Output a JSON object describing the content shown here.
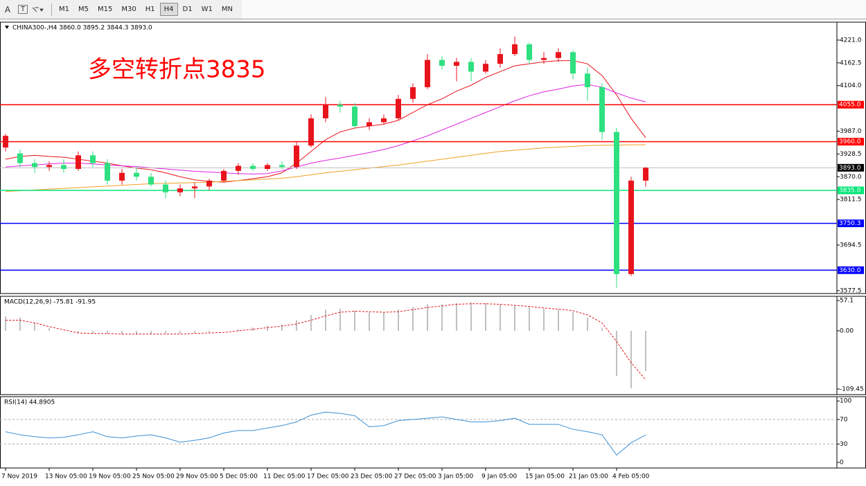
{
  "toolbar": {
    "text_tool": "A",
    "label_tool": "T",
    "periods": [
      "M1",
      "M5",
      "M15",
      "M30",
      "H1",
      "H4",
      "D1",
      "W1",
      "MN"
    ],
    "active": "H4"
  },
  "chart_data": [
    {
      "type": "candlestick",
      "title": "CHINA300-,H4 3860.0 3895.2 3844.3 3893.0",
      "annotation": "多空转折点3835",
      "categories": [
        "7 Nov 2019",
        null,
        null,
        "13 Nov 05:00",
        null,
        null,
        "19 Nov 05:00",
        null,
        null,
        "25 Nov 05:00",
        null,
        null,
        "29 Nov 05:00",
        null,
        null,
        "5 Dec 05:00",
        null,
        null,
        "11 Dec 05:00",
        null,
        null,
        "17 Dec 05:00",
        null,
        null,
        "23 Dec 05:00",
        null,
        null,
        "27 Dec 05:00",
        null,
        null,
        "3 Jan 05:00",
        null,
        null,
        "9 Jan 05:00",
        null,
        null,
        "15 Jan 05:00",
        null,
        null,
        "21 Jan 05:00",
        null,
        null,
        "4 Feb 05:00",
        null,
        null
      ],
      "open": [
        3945,
        3930,
        3905,
        3895,
        3900,
        3890,
        3925,
        3905,
        3860,
        3880,
        3870,
        3850,
        3830,
        3840,
        3845,
        3860,
        3885,
        3898,
        3890,
        3900,
        3895,
        3950,
        4020,
        4055,
        4050,
        4000,
        4010,
        4020,
        4070,
        4100,
        4170,
        4155,
        4165,
        4140,
        4160,
        4185,
        4210,
        4170,
        4175,
        4190,
        4135,
        4100,
        3985,
        3620,
        3860
      ],
      "high": [
        3980,
        3940,
        3915,
        3910,
        3915,
        3935,
        3935,
        3915,
        3890,
        3895,
        3880,
        3860,
        3850,
        3855,
        3865,
        3890,
        3905,
        3905,
        3905,
        3910,
        3960,
        4030,
        4075,
        4065,
        4060,
        4020,
        4030,
        4080,
        4110,
        4185,
        4180,
        4175,
        4175,
        4170,
        4200,
        4230,
        4215,
        4190,
        4200,
        4195,
        4150,
        4110,
        3995,
        3870,
        3895.2
      ],
      "low": [
        3935,
        3895,
        3880,
        3885,
        3880,
        3885,
        3895,
        3850,
        3850,
        3860,
        3845,
        3815,
        3820,
        3815,
        3835,
        3855,
        3875,
        3885,
        3885,
        3890,
        3890,
        3945,
        4010,
        4035,
        3995,
        3990,
        4005,
        4015,
        4060,
        4095,
        4145,
        4115,
        4115,
        4135,
        4150,
        4180,
        4160,
        4160,
        4165,
        4120,
        4065,
        3965,
        3585,
        3615,
        3844.3
      ],
      "close": [
        3975,
        3905,
        3895,
        3900,
        3890,
        3925,
        3905,
        3860,
        3880,
        3870,
        3850,
        3830,
        3840,
        3845,
        3860,
        3885,
        3898,
        3890,
        3900,
        3895,
        3950,
        4020,
        4055,
        4050,
        4000,
        4010,
        4020,
        4070,
        4100,
        4170,
        4155,
        4165,
        4140,
        4160,
        4185,
        4210,
        4170,
        4175,
        4190,
        4135,
        4100,
        3985,
        3620,
        3860,
        3893
      ],
      "up_color": "#e8141c",
      "down_color": "#2ee07f",
      "lines": [
        {
          "color": "#e8141c",
          "values": [
            3915,
            3922,
            3925,
            3922,
            3920,
            3915,
            3910,
            3905,
            3898,
            3892,
            3888,
            3880,
            3870,
            3862,
            3858,
            3856,
            3860,
            3865,
            3870,
            3880,
            3905,
            3935,
            3965,
            3985,
            3995,
            4000,
            4005,
            4015,
            4035,
            4055,
            4070,
            4090,
            4105,
            4125,
            4140,
            4155,
            4160,
            4165,
            4168,
            4168,
            4160,
            4130,
            4080,
            4020,
            3970
          ]
        },
        {
          "color": "#e020e0",
          "values": [
            3895,
            3898,
            3900,
            3903,
            3905,
            3905,
            3903,
            3900,
            3898,
            3896,
            3893,
            3890,
            3887,
            3884,
            3882,
            3880,
            3878,
            3877,
            3878,
            3885,
            3895,
            3905,
            3912,
            3918,
            3925,
            3932,
            3940,
            3950,
            3962,
            3975,
            3990,
            4005,
            4020,
            4035,
            4050,
            4065,
            4078,
            4088,
            4095,
            4103,
            4107,
            4100,
            4085,
            4072,
            4062
          ]
        },
        {
          "color": "#f0a020",
          "values": [
            3832,
            3834,
            3836,
            3838,
            3840,
            3842,
            3844,
            3846,
            3848,
            3850,
            3852,
            3853,
            3854,
            3855,
            3856,
            3858,
            3860,
            3862,
            3864,
            3866,
            3870,
            3875,
            3880,
            3884,
            3888,
            3892,
            3896,
            3900,
            3905,
            3910,
            3915,
            3920,
            3925,
            3930,
            3935,
            3938,
            3941,
            3944,
            3946,
            3948,
            3950,
            3951,
            3951,
            3952,
            3952
          ]
        }
      ],
      "levels": [
        {
          "value": 4055,
          "label": "4055.0",
          "color": "#ff0000"
        },
        {
          "value": 3960,
          "label": "3960.0",
          "color": "#ff0000"
        },
        {
          "value": 3835,
          "label": "3835.0",
          "color": "#00e676"
        },
        {
          "value": 3750.3,
          "label": "3750.3",
          "color": "#0000ff"
        },
        {
          "value": 3630,
          "label": "3630.0",
          "color": "#0000ff"
        }
      ],
      "last": {
        "value": 3893,
        "label": "3893.0"
      },
      "ylim": [
        3570,
        4267
      ],
      "yticks": [
        {
          "value": 4221,
          "label": "4221.0"
        },
        {
          "value": 4162.5,
          "label": "4162.5"
        },
        {
          "value": 4104,
          "label": "4104.0"
        },
        {
          "value": 3987,
          "label": "3987.0"
        },
        {
          "value": 3928.5,
          "label": "3928.5"
        },
        {
          "value": 3870,
          "label": "3870.0"
        },
        {
          "value": 3811.5,
          "label": "3811.5"
        },
        {
          "value": 3694.5,
          "label": "3694.5"
        },
        {
          "value": 3577.5,
          "label": "3577.5"
        }
      ]
    },
    {
      "type": "macd",
      "title": "MACD(12,26,9) -75.81 -91.95",
      "values": [
        27,
        25,
        15,
        5,
        0,
        -3,
        -5,
        -6,
        -7,
        -7,
        -6,
        -5,
        -5,
        -4,
        -3,
        0,
        3,
        6,
        10,
        12,
        20,
        30,
        40,
        42,
        38,
        35,
        35,
        40,
        45,
        50,
        50,
        52,
        54,
        52,
        50,
        48,
        45,
        42,
        40,
        35,
        25,
        5,
        -85,
        -108,
        -75.81
      ],
      "signal": [
        20,
        20,
        15,
        8,
        2,
        -4,
        -5,
        -5,
        -6,
        -6,
        -6,
        -6,
        -6,
        -5,
        -4,
        -3,
        0,
        3,
        6,
        9,
        13,
        20,
        28,
        35,
        37,
        36,
        35,
        36,
        40,
        44,
        47,
        50,
        51,
        51,
        50,
        48,
        46,
        43,
        41,
        38,
        30,
        15,
        -20,
        -60,
        -91.95
      ],
      "color": "#c0c0c0",
      "signal_color": "#e8141c",
      "ylim": [
        -120,
        65
      ],
      "yticks": [
        57.1,
        {
          "value": 0,
          "label": "0.00"
        },
        -109.45
      ]
    },
    {
      "type": "line",
      "title": "RSI(14) 44.8905",
      "values": [
        50,
        45,
        42,
        40,
        41,
        45,
        50,
        42,
        40,
        43,
        45,
        40,
        33,
        36,
        40,
        48,
        52,
        52,
        56,
        60,
        66,
        77,
        82,
        80,
        76,
        58,
        60,
        68,
        70,
        72,
        74,
        70,
        66,
        66,
        68,
        72,
        62,
        62,
        62,
        54,
        50,
        45,
        12,
        32,
        44.8905
      ],
      "color": "#3a8fd6",
      "ylim": [
        -9,
        107
      ],
      "yticks": [
        100,
        70,
        30,
        0
      ]
    }
  ]
}
